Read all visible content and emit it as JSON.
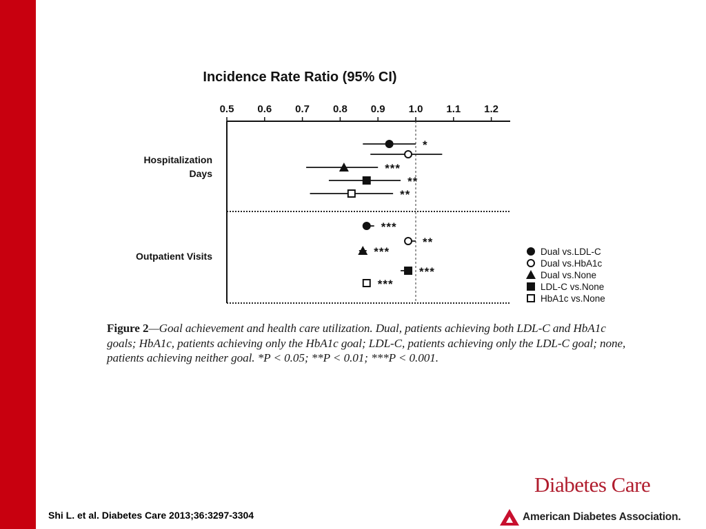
{
  "colors": {
    "accent_bar": "#c8000f",
    "journal": "#b01d2e",
    "ada_logo": "#c8102e"
  },
  "chart_data": {
    "type": "forest",
    "title": "Incidence Rate Ratio (95% CI)",
    "xlim": [
      0.5,
      1.25
    ],
    "ticks": [
      "0.5",
      "0.6",
      "0.7",
      "0.8",
      "0.9",
      "1.0",
      "1.1",
      "1.2"
    ],
    "reference_line": 1.0,
    "groups": [
      {
        "label_lines": [
          "Hospitalization",
          "Days"
        ]
      },
      {
        "label_lines": [
          "Outpatient Visits"
        ]
      }
    ],
    "series": [
      {
        "name": "Dual vs.LDL-C",
        "marker": "circle-filled"
      },
      {
        "name": "Dual vs.HbA1c",
        "marker": "circle-open"
      },
      {
        "name": "Dual vs.None",
        "marker": "triangle-filled"
      },
      {
        "name": "LDL-C vs.None",
        "marker": "square-filled"
      },
      {
        "name": "HbA1c vs.None",
        "marker": "square-open"
      }
    ],
    "points": [
      {
        "group": 0,
        "series": 0,
        "estimate": 0.93,
        "ci": [
          0.86,
          1.0
        ],
        "sig": "*"
      },
      {
        "group": 0,
        "series": 1,
        "estimate": 0.98,
        "ci": [
          0.88,
          1.07
        ],
        "sig": ""
      },
      {
        "group": 0,
        "series": 2,
        "estimate": 0.81,
        "ci": [
          0.71,
          0.9
        ],
        "sig": "***"
      },
      {
        "group": 0,
        "series": 3,
        "estimate": 0.87,
        "ci": [
          0.77,
          0.96
        ],
        "sig": "**"
      },
      {
        "group": 0,
        "series": 4,
        "estimate": 0.83,
        "ci": [
          0.72,
          0.94
        ],
        "sig": "**"
      },
      {
        "group": 1,
        "series": 0,
        "estimate": 0.87,
        "ci": [
          0.86,
          0.89
        ],
        "sig": "***"
      },
      {
        "group": 1,
        "series": 1,
        "estimate": 0.98,
        "ci": [
          0.97,
          1.0
        ],
        "sig": "**"
      },
      {
        "group": 1,
        "series": 2,
        "estimate": 0.86,
        "ci": [
          0.85,
          0.87
        ],
        "sig": "***"
      },
      {
        "group": 1,
        "series": 3,
        "estimate": 0.98,
        "ci": [
          0.96,
          0.99
        ],
        "sig": "***"
      },
      {
        "group": 1,
        "series": 4,
        "estimate": 0.87,
        "ci": [
          0.86,
          0.88
        ],
        "sig": "***"
      }
    ]
  },
  "caption": {
    "label": "Figure 2",
    "text": "—Goal achievement and health care utilization. Dual, patients achieving both LDL-C and HbA1c goals; HbA1c, patients achieving only the HbA1c goal; LDL-C, patients achieving only the LDL-C goal; none, patients achieving neither goal. *P < 0.05; **P < 0.01; ***P < 0.001."
  },
  "citation": "Shi L. et al. Diabetes Care 2013;36:3297-3304",
  "journal": "Diabetes Care",
  "publisher": "American Diabetes Association."
}
